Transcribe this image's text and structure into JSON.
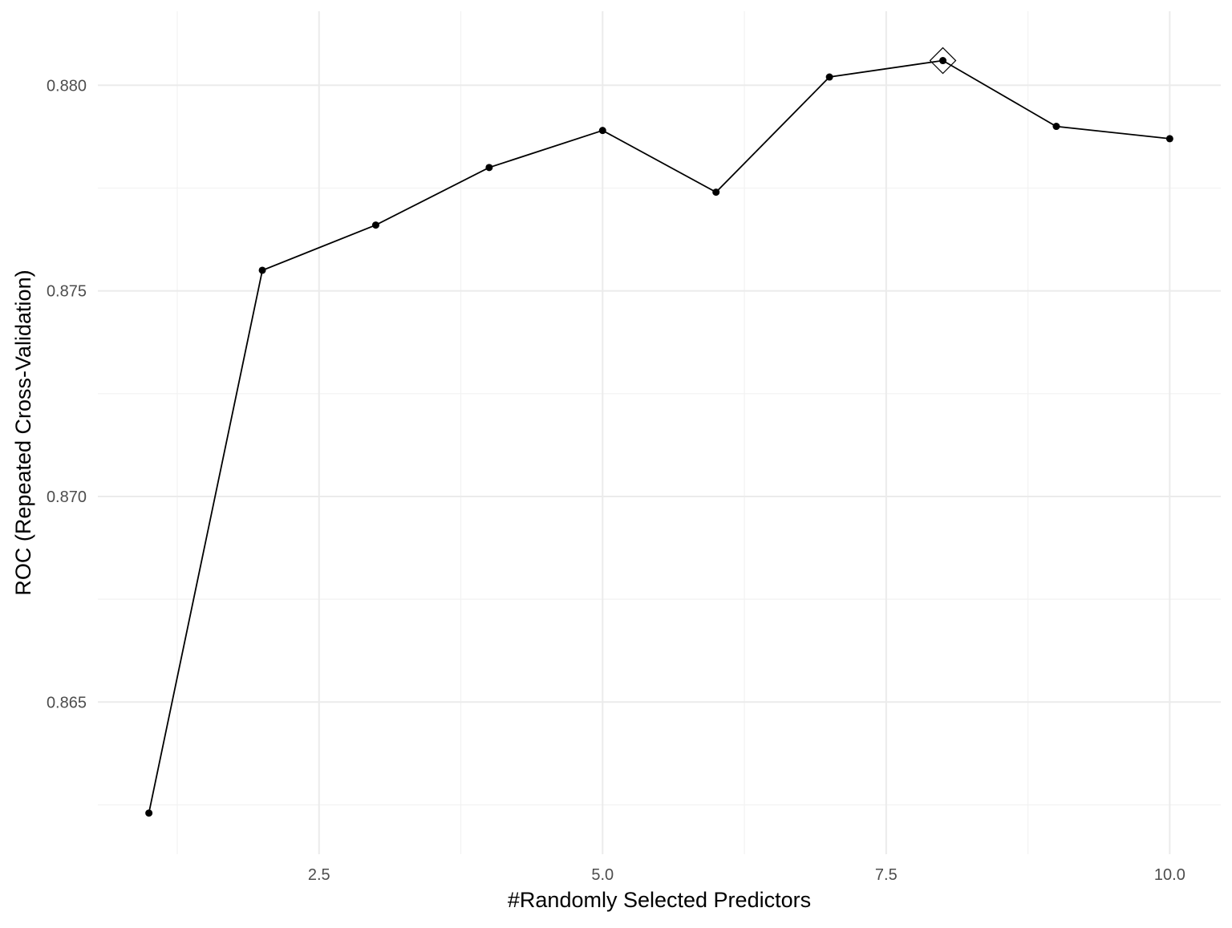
{
  "chart_data": {
    "type": "line",
    "title": "",
    "xlabel": "#Randomly Selected Predictors",
    "ylabel": "ROC (Repeated Cross-Validation)",
    "x": [
      1,
      2,
      3,
      4,
      5,
      6,
      7,
      8,
      9,
      10
    ],
    "series": [
      {
        "values": [
          0.8623,
          0.8755,
          0.8766,
          0.878,
          0.8789,
          0.8774,
          0.8802,
          0.8806,
          0.879,
          0.8787
        ]
      }
    ],
    "best": {
      "x": 8,
      "y": 0.8806,
      "marker": "diamond"
    },
    "xlim": [
      0.55,
      10.45
    ],
    "ylim": [
      0.8613,
      0.8818
    ],
    "x_ticks": [
      2.5,
      5.0,
      7.5,
      10.0
    ],
    "x_tick_labels": [
      "2.5",
      "5.0",
      "7.5",
      "10.0"
    ],
    "y_ticks": [
      0.865,
      0.87,
      0.875,
      0.88
    ],
    "y_tick_labels": [
      "0.865",
      "0.870",
      "0.875",
      "0.880"
    ],
    "grid": true,
    "legend": "none",
    "colors": {
      "line": "#000000",
      "points": "#000000",
      "grid_major": "#ebebeb",
      "grid_minor": "#f2f2f2",
      "background": "#ffffff"
    }
  }
}
